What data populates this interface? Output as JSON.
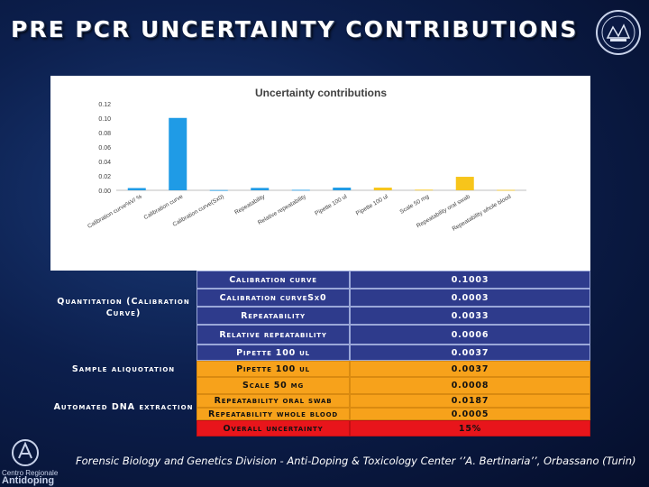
{
  "slide": {
    "title": "PRE PCR UNCERTAINTY CONTRIBUTIONS",
    "footer": "Forensic Biology and Genetics Division - Anti-Doping & Toxicology Center ‘’A. Bertinaria’’, Orbassano (Turin)",
    "logo": {
      "line1": "Centro Regionale",
      "line2": "Antidoping"
    }
  },
  "chart_data": {
    "type": "bar",
    "title": "Uncertainty contributions",
    "categories": [
      "Calibration curve%V/ %",
      "Calibration curve",
      "Calibration curve(Sx0)",
      "Repeatability",
      "Relative repeatability",
      "Pipette 100 ul",
      "Pipette 100 ul",
      "Scale 50 mg",
      "Repeatability oral swab",
      "Repeatability whole blood"
    ],
    "values": [
      0.0031,
      0.1003,
      0.0003,
      0.0033,
      0.0006,
      0.0037,
      0.0037,
      0.0008,
      0.0187,
      0.0005
    ],
    "ylim": [
      0,
      0.12
    ],
    "yticks": [
      "0.00",
      "0.02",
      "0.04",
      "0.06",
      "0.08",
      "0.10",
      "0.12"
    ],
    "bar_colors": [
      "#1f9be6",
      "#1f9be6",
      "#1f9be6",
      "#1f9be6",
      "#1f9be6",
      "#1f9be6",
      "#f7c51b",
      "#f7c51b",
      "#f7c51b",
      "#f7c51b"
    ],
    "xlabel": "",
    "ylabel": "",
    "grid": false,
    "legend": "none"
  },
  "table": {
    "groups": [
      {
        "label": "Quantitation (Calibration Curve)"
      },
      {
        "label": "Sample aliquotation"
      },
      {
        "label": "Automated DNA extraction"
      }
    ],
    "rows": [
      {
        "name": "Calibration curve",
        "value": "0.1003"
      },
      {
        "name": "Calibration curveSx0",
        "value": "0.0003"
      },
      {
        "name": "Repeatability",
        "value": "0.0033"
      },
      {
        "name": "Relative repeatability",
        "value": "0.0006"
      },
      {
        "name": "Pipette 100 ul",
        "value": "0.0037"
      },
      {
        "name": "Pipette 100 ul",
        "value": "0.0037"
      },
      {
        "name": "Scale 50 mg",
        "value": "0.0008"
      },
      {
        "name": "Repeatability oral swab",
        "value": "0.0187"
      },
      {
        "name": "Repeatability whole blood",
        "value": "0.0005"
      },
      {
        "name": "Overall uncertainty",
        "value": "15%"
      }
    ]
  }
}
